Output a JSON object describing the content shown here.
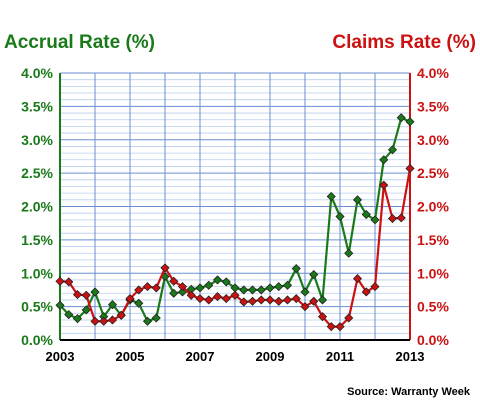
{
  "chart_data": {
    "type": "line",
    "left_axis_title": "Accrual Rate (%)",
    "right_axis_title": "Claims Rate (%)",
    "source": "Source: Warranty Week",
    "x_range": [
      2003,
      2013
    ],
    "x_tick_labels": [
      "2003",
      "2005",
      "2007",
      "2009",
      "2011",
      "2013"
    ],
    "y_range": [
      0,
      4.0
    ],
    "y_tick_labels": [
      "0.0%",
      "0.5%",
      "1.0%",
      "1.5%",
      "2.0%",
      "2.5%",
      "3.0%",
      "3.5%",
      "4.0%"
    ],
    "grid": true,
    "series": [
      {
        "name": "Accrual Rate (%)",
        "axis": "left",
        "color": "#1a7a1a",
        "x": [
          2003.0,
          2003.25,
          2003.5,
          2003.75,
          2004.0,
          2004.25,
          2004.5,
          2004.75,
          2005.0,
          2005.25,
          2005.5,
          2005.75,
          2006.0,
          2006.25,
          2006.5,
          2006.75,
          2007.0,
          2007.25,
          2007.5,
          2007.75,
          2008.0,
          2008.25,
          2008.5,
          2008.75,
          2009.0,
          2009.25,
          2009.5,
          2009.75,
          2010.0,
          2010.25,
          2010.5,
          2010.75,
          2011.0,
          2011.25,
          2011.5,
          2011.75,
          2012.0,
          2012.25,
          2012.5,
          2012.75,
          2013.0
        ],
        "values": [
          0.52,
          0.38,
          0.32,
          0.45,
          0.72,
          0.35,
          0.53,
          0.37,
          0.6,
          0.55,
          0.28,
          0.33,
          0.95,
          0.7,
          0.72,
          0.76,
          0.78,
          0.82,
          0.9,
          0.87,
          0.78,
          0.75,
          0.75,
          0.75,
          0.78,
          0.8,
          0.82,
          1.07,
          0.72,
          0.98,
          0.6,
          2.15,
          1.85,
          1.3,
          2.1,
          1.88,
          1.8,
          2.7,
          2.85,
          3.33,
          3.27
        ]
      },
      {
        "name": "Claims Rate (%)",
        "axis": "right",
        "color": "#cc1111",
        "x": [
          2003.0,
          2003.25,
          2003.5,
          2003.75,
          2004.0,
          2004.25,
          2004.5,
          2004.75,
          2005.0,
          2005.25,
          2005.5,
          2005.75,
          2006.0,
          2006.25,
          2006.5,
          2006.75,
          2007.0,
          2007.25,
          2007.5,
          2007.75,
          2008.0,
          2008.25,
          2008.5,
          2008.75,
          2009.0,
          2009.25,
          2009.5,
          2009.75,
          2010.0,
          2010.25,
          2010.5,
          2010.75,
          2011.0,
          2011.25,
          2011.5,
          2011.75,
          2012.0,
          2012.25,
          2012.5,
          2012.75,
          2013.0
        ],
        "values": [
          0.88,
          0.87,
          0.68,
          0.67,
          0.28,
          0.28,
          0.3,
          0.37,
          0.62,
          0.75,
          0.8,
          0.78,
          1.08,
          0.88,
          0.8,
          0.67,
          0.62,
          0.6,
          0.65,
          0.62,
          0.67,
          0.57,
          0.58,
          0.6,
          0.6,
          0.58,
          0.6,
          0.62,
          0.5,
          0.58,
          0.35,
          0.2,
          0.2,
          0.33,
          0.92,
          0.72,
          0.8,
          2.32,
          1.82,
          1.83,
          2.57
        ]
      }
    ]
  }
}
